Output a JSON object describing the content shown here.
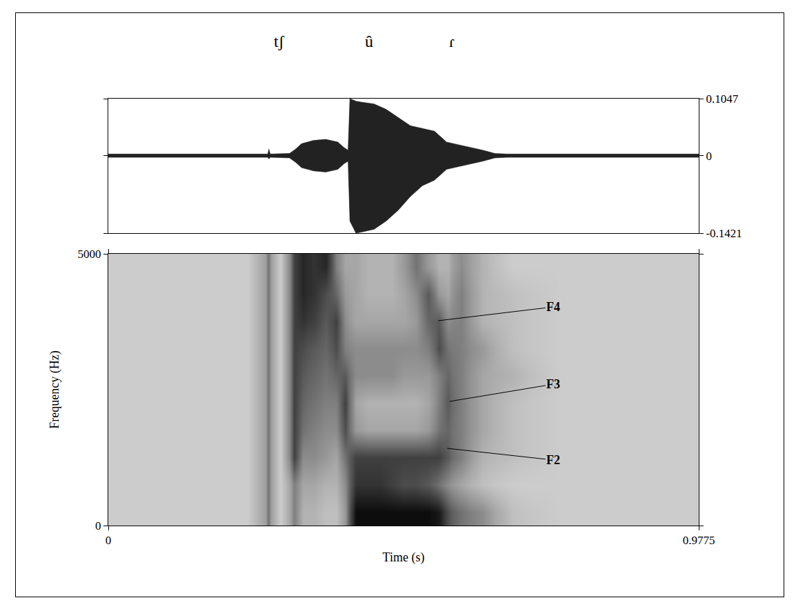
{
  "chart_data": [
    {
      "type": "area",
      "color": "#222222",
      "tick_labels": "y",
      "segments": [
        {
          "label": "tʃ",
          "x": 0.283
        },
        {
          "label": "û",
          "x": 0.432
        },
        {
          "label": "ɾ",
          "x": 0.569
        }
      ],
      "x": [
        0,
        0.05,
        0.1,
        0.15,
        0.2,
        0.25,
        0.264,
        0.266,
        0.268,
        0.3,
        0.31,
        0.32,
        0.34,
        0.36,
        0.38,
        0.39,
        0.397,
        0.4,
        0.41,
        0.42,
        0.44,
        0.46,
        0.48,
        0.5,
        0.52,
        0.54,
        0.55,
        0.56,
        0.58,
        0.6,
        0.62,
        0.64,
        0.66,
        0.7,
        0.75,
        0.8,
        0.85,
        0.9,
        0.95,
        0.9775
      ],
      "upper": [
        0.003,
        0.003,
        0.003,
        0.003,
        0.003,
        0.003,
        0.003,
        0.012,
        0.003,
        0.004,
        0.012,
        0.022,
        0.028,
        0.03,
        0.025,
        0.015,
        0.01,
        0.1047,
        0.1,
        0.098,
        0.095,
        0.085,
        0.07,
        0.055,
        0.05,
        0.045,
        0.035,
        0.025,
        0.02,
        0.015,
        0.01,
        0.004,
        0.003,
        0.003,
        0.003,
        0.003,
        0.003,
        0.003,
        0.003,
        0.003
      ],
      "lower": [
        -0.003,
        -0.003,
        -0.003,
        -0.003,
        -0.003,
        -0.003,
        -0.003,
        -0.006,
        -0.003,
        -0.004,
        -0.012,
        -0.022,
        -0.028,
        -0.03,
        -0.025,
        -0.015,
        -0.01,
        -0.12,
        -0.1421,
        -0.14,
        -0.135,
        -0.12,
        -0.1,
        -0.075,
        -0.055,
        -0.045,
        -0.035,
        -0.025,
        -0.02,
        -0.015,
        -0.01,
        -0.004,
        -0.003,
        -0.003,
        -0.003,
        -0.003,
        -0.003,
        -0.003,
        -0.003,
        -0.003
      ],
      "xlim": [
        0,
        0.9775
      ],
      "ylim": [
        -0.1421,
        0.1047
      ],
      "yticks": [
        -0.1421,
        0,
        0.1047
      ]
    },
    {
      "type": "heatmap",
      "xlabel": "Time (s)",
      "ylabel": "Frequency (Hz)",
      "xlim": [
        0,
        0.9775
      ],
      "ylim": [
        0,
        5000
      ],
      "xticks": [
        0,
        0.9775
      ],
      "yticks": [
        0,
        5000
      ],
      "zlim": [
        0,
        1
      ],
      "x_edges": [
        0,
        0.1,
        0.2,
        0.26,
        0.27,
        0.3,
        0.315,
        0.33,
        0.35,
        0.37,
        0.385,
        0.4,
        0.42,
        0.44,
        0.46,
        0.48,
        0.5,
        0.52,
        0.54,
        0.555,
        0.57,
        0.6,
        0.64,
        0.7,
        0.8,
        0.9,
        0.9775
      ],
      "y_edges": [
        0,
        500,
        1000,
        1500,
        2000,
        2500,
        3000,
        3500,
        4000,
        4500,
        5000
      ],
      "cells": [
        [
          0.2,
          0.2,
          0.2,
          0.2,
          0.2,
          0.2,
          0.2,
          0.2,
          0.2,
          0.2
        ],
        [
          0.2,
          0.2,
          0.2,
          0.2,
          0.2,
          0.2,
          0.2,
          0.2,
          0.2,
          0.2
        ],
        [
          0.2,
          0.2,
          0.2,
          0.2,
          0.2,
          0.2,
          0.2,
          0.2,
          0.2,
          0.2
        ],
        [
          0.55,
          0.55,
          0.55,
          0.55,
          0.55,
          0.55,
          0.55,
          0.55,
          0.55,
          0.55
        ],
        [
          0.2,
          0.2,
          0.2,
          0.2,
          0.2,
          0.2,
          0.2,
          0.2,
          0.2,
          0.2
        ],
        [
          0.5,
          0.5,
          0.75,
          0.75,
          0.75,
          0.75,
          0.75,
          0.75,
          0.75,
          0.75
        ],
        [
          0.3,
          0.35,
          0.45,
          0.55,
          0.6,
          0.65,
          0.7,
          0.8,
          0.85,
          0.85
        ],
        [
          0.3,
          0.35,
          0.45,
          0.5,
          0.55,
          0.6,
          0.65,
          0.75,
          0.8,
          0.8
        ],
        [
          0.25,
          0.3,
          0.4,
          0.45,
          0.5,
          0.55,
          0.6,
          0.65,
          0.7,
          0.85
        ],
        [
          0.25,
          0.3,
          0.35,
          0.45,
          0.5,
          0.6,
          0.7,
          0.75,
          0.6,
          0.5
        ],
        [
          0.4,
          0.45,
          0.55,
          0.7,
          0.75,
          0.65,
          0.5,
          0.45,
          0.4,
          0.35
        ],
        [
          0.95,
          0.8,
          0.75,
          0.4,
          0.35,
          0.45,
          0.45,
          0.35,
          0.35,
          0.35
        ],
        [
          0.95,
          0.8,
          0.75,
          0.35,
          0.3,
          0.45,
          0.45,
          0.35,
          0.3,
          0.3
        ],
        [
          0.95,
          0.8,
          0.75,
          0.35,
          0.3,
          0.45,
          0.45,
          0.35,
          0.3,
          0.3
        ],
        [
          0.95,
          0.75,
          0.75,
          0.35,
          0.3,
          0.45,
          0.45,
          0.35,
          0.3,
          0.3
        ],
        [
          0.95,
          0.7,
          0.75,
          0.35,
          0.3,
          0.4,
          0.45,
          0.35,
          0.35,
          0.4
        ],
        [
          0.95,
          0.7,
          0.75,
          0.35,
          0.3,
          0.4,
          0.45,
          0.4,
          0.45,
          0.55
        ],
        [
          0.95,
          0.65,
          0.75,
          0.4,
          0.35,
          0.4,
          0.5,
          0.6,
          0.65,
          0.4
        ],
        [
          0.9,
          0.55,
          0.75,
          0.55,
          0.5,
          0.5,
          0.7,
          0.65,
          0.4,
          0.3
        ],
        [
          0.7,
          0.45,
          0.65,
          0.6,
          0.65,
          0.6,
          0.55,
          0.45,
          0.35,
          0.3
        ],
        [
          0.55,
          0.35,
          0.5,
          0.5,
          0.5,
          0.5,
          0.5,
          0.5,
          0.5,
          0.45
        ],
        [
          0.45,
          0.25,
          0.3,
          0.35,
          0.35,
          0.35,
          0.4,
          0.3,
          0.3,
          0.3
        ],
        [
          0.25,
          0.2,
          0.25,
          0.25,
          0.25,
          0.3,
          0.25,
          0.25,
          0.25,
          0.2
        ],
        [
          0.2,
          0.2,
          0.2,
          0.2,
          0.2,
          0.2,
          0.2,
          0.2,
          0.2,
          0.2
        ],
        [
          0.2,
          0.2,
          0.2,
          0.2,
          0.2,
          0.2,
          0.2,
          0.2,
          0.2,
          0.2
        ],
        [
          0.2,
          0.2,
          0.2,
          0.2,
          0.2,
          0.2,
          0.2,
          0.2,
          0.2,
          0.2
        ]
      ],
      "annotations": [
        {
          "text": "F4",
          "x": 0.546,
          "y": 3769,
          "label_x": 0.737,
          "label_y": 4023
        },
        {
          "text": "F3",
          "x": 0.565,
          "y": 2284,
          "label_x": 0.737,
          "label_y": 2601
        },
        {
          "text": "F2",
          "x": 0.561,
          "y": 1421,
          "label_x": 0.737,
          "label_y": 1205
        }
      ]
    }
  ]
}
